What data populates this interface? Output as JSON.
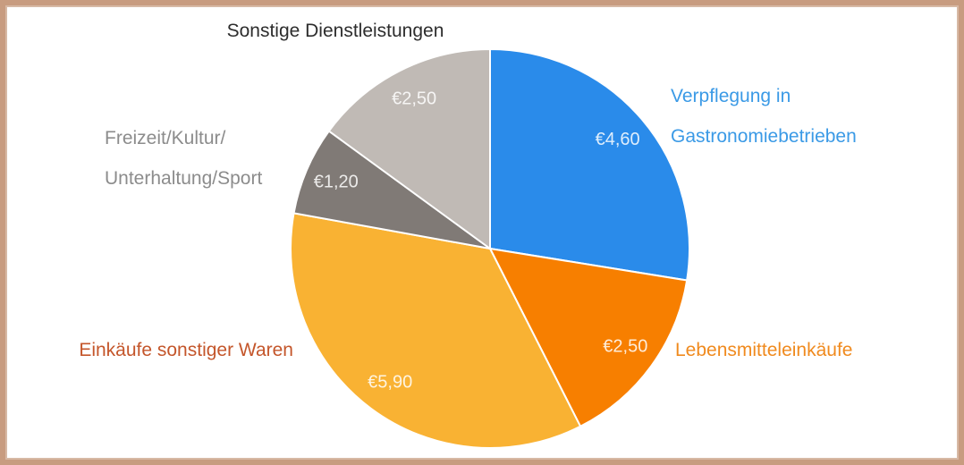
{
  "chart_data": {
    "type": "pie",
    "categories": [
      "Verpflegung in Gastronomiebetrieben",
      "Lebensmitteleinkäufe",
      "Einkäufe sonstiger Waren",
      "Freizeit/Kultur/Unterhaltung/Sport",
      "Sonstige Dienstleistungen"
    ],
    "values": [
      4.6,
      2.5,
      5.9,
      1.2,
      2.5
    ],
    "value_labels": [
      "€4,60",
      "€2,50",
      "€5,90",
      "€1,20",
      "€2,50"
    ],
    "colors": [
      "#2a8bea",
      "#f77f00",
      "#f9b233",
      "#807a76",
      "#c0bab5"
    ],
    "label_colors": [
      "#3b9ae6",
      "#f08a1e",
      "#c4562b",
      "#8c8c8c",
      "#2d2d2d"
    ]
  }
}
